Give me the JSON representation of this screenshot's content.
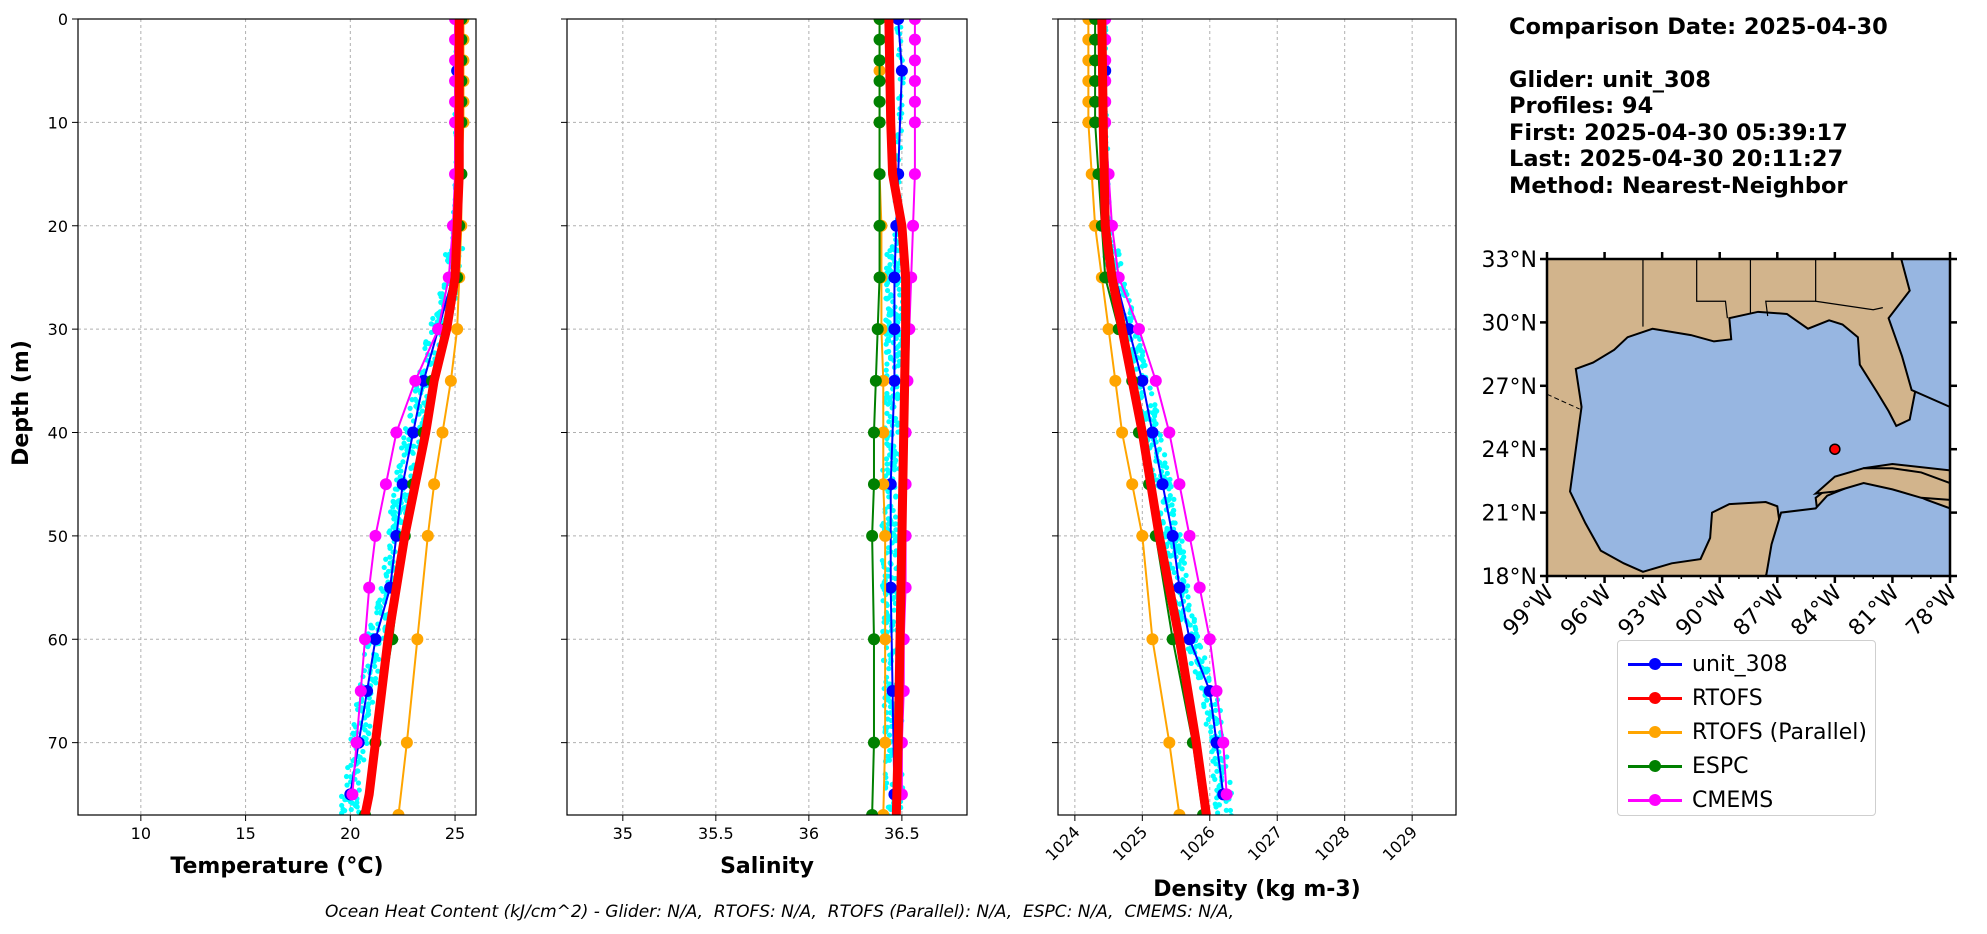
{
  "info": {
    "comparison_date": "Comparison Date: 2025-04-30",
    "glider": "Glider: unit_308",
    "profiles": "Profiles: 94",
    "first": "First: 2025-04-30 05:39:17",
    "last": "Last: 2025-04-30 20:11:27",
    "method": "Method: Nearest-Neighbor"
  },
  "footer": "Ocean Heat Content (kJ/cm^2) - Glider: N/A,  RTOFS: N/A,  RTOFS (Parallel): N/A,  ESPC: N/A,  CMEMS: N/A,",
  "colors": {
    "unit_308": "#0000ff",
    "RTOFS": "#ff0000",
    "RTOFS (Parallel)": "#ffa500",
    "ESPC": "#008000",
    "CMEMS": "#ff00ff",
    "glider_points": "#00ffff",
    "land": "#d2b48c",
    "ocean": "#97b6e1"
  },
  "legend": [
    {
      "label": "unit_308",
      "color": "#0000ff"
    },
    {
      "label": "RTOFS",
      "color": "#ff0000"
    },
    {
      "label": "RTOFS (Parallel)",
      "color": "#ffa500"
    },
    {
      "label": "ESPC",
      "color": "#008000"
    },
    {
      "label": "CMEMS",
      "color": "#ff00ff"
    }
  ],
  "chart_data": [
    {
      "type": "line",
      "xlabel": "Temperature (°C)",
      "ylabel": "Depth (m)",
      "xlim": [
        7,
        26
      ],
      "ylim": [
        77,
        0
      ],
      "xticks": [
        10,
        15,
        20,
        25
      ],
      "yticks": [
        0,
        10,
        20,
        30,
        40,
        50,
        60,
        70
      ],
      "grid": true,
      "depth": [
        0,
        2,
        4,
        6,
        8,
        10,
        15,
        20,
        25,
        30,
        35,
        40,
        45,
        50,
        55,
        60,
        65,
        70,
        75,
        77
      ],
      "series": [
        {
          "name": "unit_308",
          "depth": [
            0,
            5,
            15,
            20,
            25,
            30,
            35,
            40,
            45,
            50,
            55,
            60,
            65,
            70,
            75
          ],
          "values": [
            25.1,
            25.1,
            25.1,
            25.0,
            24.9,
            24.2,
            23.5,
            23.0,
            22.5,
            22.2,
            21.9,
            21.2,
            20.8,
            20.4,
            20.0
          ]
        },
        {
          "name": "RTOFS",
          "depth": [
            0,
            5,
            10,
            15,
            20,
            25,
            30,
            35,
            40,
            45,
            50,
            55,
            60,
            65,
            70,
            75,
            77
          ],
          "values": [
            25.2,
            25.2,
            25.2,
            25.2,
            25.1,
            25.0,
            24.6,
            24.0,
            23.6,
            23.1,
            22.6,
            22.2,
            21.8,
            21.5,
            21.2,
            20.9,
            20.7
          ]
        },
        {
          "name": "RTOFS (Parallel)",
          "depth": [
            0,
            2,
            4,
            6,
            8,
            10,
            15,
            20,
            25,
            30,
            35,
            40,
            45,
            50,
            60,
            70,
            77
          ],
          "values": [
            25.4,
            25.4,
            25.4,
            25.4,
            25.4,
            25.4,
            25.3,
            25.3,
            25.2,
            25.1,
            24.8,
            24.4,
            24.0,
            23.7,
            23.2,
            22.7,
            22.3
          ]
        },
        {
          "name": "ESPC",
          "depth": [
            0,
            2,
            4,
            6,
            8,
            10,
            15,
            20,
            25,
            30,
            35,
            40,
            45,
            50,
            60,
            70,
            77
          ],
          "values": [
            25.3,
            25.3,
            25.3,
            25.3,
            25.3,
            25.3,
            25.3,
            25.2,
            25.1,
            24.5,
            23.9,
            23.5,
            23.0,
            22.6,
            22.0,
            21.2,
            20.7
          ]
        },
        {
          "name": "CMEMS",
          "depth": [
            0,
            2,
            4,
            6,
            8,
            10,
            15,
            20,
            25,
            30,
            35,
            40,
            45,
            50,
            55,
            60,
            65,
            70,
            75
          ],
          "values": [
            25.0,
            25.0,
            25.0,
            25.0,
            25.0,
            25.0,
            25.0,
            24.9,
            24.7,
            24.2,
            23.1,
            22.2,
            21.7,
            21.2,
            20.9,
            20.7,
            20.5,
            20.3,
            20.1
          ]
        }
      ]
    },
    {
      "type": "line",
      "xlabel": "Salinity",
      "xlim": [
        34.7,
        36.85
      ],
      "ylim": [
        77,
        0
      ],
      "xticks": [
        35.0,
        35.5,
        36.0,
        36.5
      ],
      "grid": true,
      "series": [
        {
          "name": "unit_308",
          "depth": [
            0,
            5,
            15,
            20,
            25,
            30,
            35,
            45,
            55,
            65,
            75
          ],
          "values": [
            36.48,
            36.5,
            36.48,
            36.47,
            36.46,
            36.46,
            36.46,
            36.44,
            36.44,
            36.45,
            36.46
          ]
        },
        {
          "name": "RTOFS",
          "depth": [
            0,
            10,
            15,
            20,
            25,
            30,
            40,
            50,
            60,
            70,
            77
          ],
          "values": [
            36.43,
            36.44,
            36.45,
            36.5,
            36.52,
            36.52,
            36.51,
            36.5,
            36.49,
            36.48,
            36.47
          ]
        },
        {
          "name": "RTOFS (Parallel)",
          "depth": [
            0,
            5,
            10,
            15,
            20,
            25,
            30,
            35,
            40,
            45,
            50,
            60,
            70,
            77
          ],
          "values": [
            36.38,
            36.38,
            36.38,
            36.38,
            36.39,
            36.39,
            36.39,
            36.4,
            36.4,
            36.4,
            36.41,
            36.41,
            36.41,
            36.4
          ]
        },
        {
          "name": "ESPC",
          "depth": [
            0,
            2,
            4,
            6,
            8,
            10,
            15,
            20,
            25,
            30,
            35,
            40,
            45,
            50,
            60,
            70,
            77
          ],
          "values": [
            36.38,
            36.38,
            36.38,
            36.38,
            36.38,
            36.38,
            36.38,
            36.38,
            36.38,
            36.37,
            36.36,
            36.35,
            36.35,
            36.34,
            36.35,
            36.35,
            36.34
          ]
        },
        {
          "name": "CMEMS",
          "depth": [
            0,
            2,
            4,
            6,
            8,
            10,
            15,
            20,
            25,
            30,
            35,
            40,
            45,
            50,
            55,
            60,
            65,
            70,
            75
          ],
          "values": [
            36.57,
            36.57,
            36.57,
            36.57,
            36.57,
            36.57,
            36.57,
            36.56,
            36.55,
            36.54,
            36.53,
            36.52,
            36.52,
            36.52,
            36.52,
            36.51,
            36.51,
            36.5,
            36.5
          ]
        }
      ]
    },
    {
      "type": "line",
      "xlabel": "Density (kg m-3)",
      "xlim": [
        1023.75,
        1029.65
      ],
      "ylim": [
        77,
        0
      ],
      "xticks": [
        1024,
        1025,
        1026,
        1027,
        1028,
        1029
      ],
      "grid": true,
      "series": [
        {
          "name": "unit_308",
          "depth": [
            0,
            5,
            15,
            20,
            25,
            30,
            35,
            40,
            45,
            50,
            55,
            60,
            65,
            70,
            75
          ],
          "values": [
            1024.42,
            1024.45,
            1024.47,
            1024.5,
            1024.6,
            1024.8,
            1025.0,
            1025.15,
            1025.3,
            1025.45,
            1025.55,
            1025.7,
            1026.0,
            1026.1,
            1026.2
          ]
        },
        {
          "name": "RTOFS",
          "depth": [
            0,
            10,
            20,
            25,
            30,
            40,
            50,
            60,
            70,
            77
          ],
          "values": [
            1024.4,
            1024.42,
            1024.45,
            1024.55,
            1024.7,
            1025.0,
            1025.25,
            1025.55,
            1025.8,
            1025.95
          ]
        },
        {
          "name": "RTOFS (Parallel)",
          "depth": [
            0,
            2,
            4,
            6,
            8,
            10,
            15,
            20,
            25,
            30,
            35,
            40,
            45,
            50,
            60,
            70,
            77
          ],
          "values": [
            1024.2,
            1024.2,
            1024.2,
            1024.2,
            1024.2,
            1024.2,
            1024.25,
            1024.3,
            1024.4,
            1024.5,
            1024.6,
            1024.7,
            1024.85,
            1025.0,
            1025.15,
            1025.4,
            1025.55
          ]
        },
        {
          "name": "ESPC",
          "depth": [
            0,
            2,
            4,
            6,
            8,
            10,
            15,
            20,
            25,
            30,
            35,
            40,
            45,
            50,
            60,
            70,
            77
          ],
          "values": [
            1024.3,
            1024.3,
            1024.3,
            1024.3,
            1024.3,
            1024.3,
            1024.35,
            1024.4,
            1024.45,
            1024.65,
            1024.85,
            1024.95,
            1025.1,
            1025.2,
            1025.45,
            1025.75,
            1025.9
          ]
        },
        {
          "name": "CMEMS",
          "depth": [
            0,
            2,
            4,
            6,
            8,
            10,
            15,
            20,
            25,
            30,
            35,
            40,
            45,
            50,
            55,
            60,
            65,
            70,
            75
          ],
          "values": [
            1024.45,
            1024.45,
            1024.45,
            1024.45,
            1024.45,
            1024.45,
            1024.5,
            1024.55,
            1024.65,
            1024.95,
            1025.2,
            1025.4,
            1025.55,
            1025.7,
            1025.85,
            1026.0,
            1026.1,
            1026.2,
            1026.25
          ]
        }
      ]
    },
    {
      "type": "map",
      "lat_ticks": [
        "18°N",
        "21°N",
        "24°N",
        "27°N",
        "30°N",
        "33°N"
      ],
      "lon_ticks": [
        "99°W",
        "96°W",
        "93°W",
        "90°W",
        "87°W",
        "84°W",
        "81°W",
        "78°W"
      ],
      "lon_range": [
        -99,
        -78
      ],
      "lat_range": [
        18,
        33
      ],
      "glider_location": {
        "lon": -84.0,
        "lat": 24.0
      }
    }
  ]
}
